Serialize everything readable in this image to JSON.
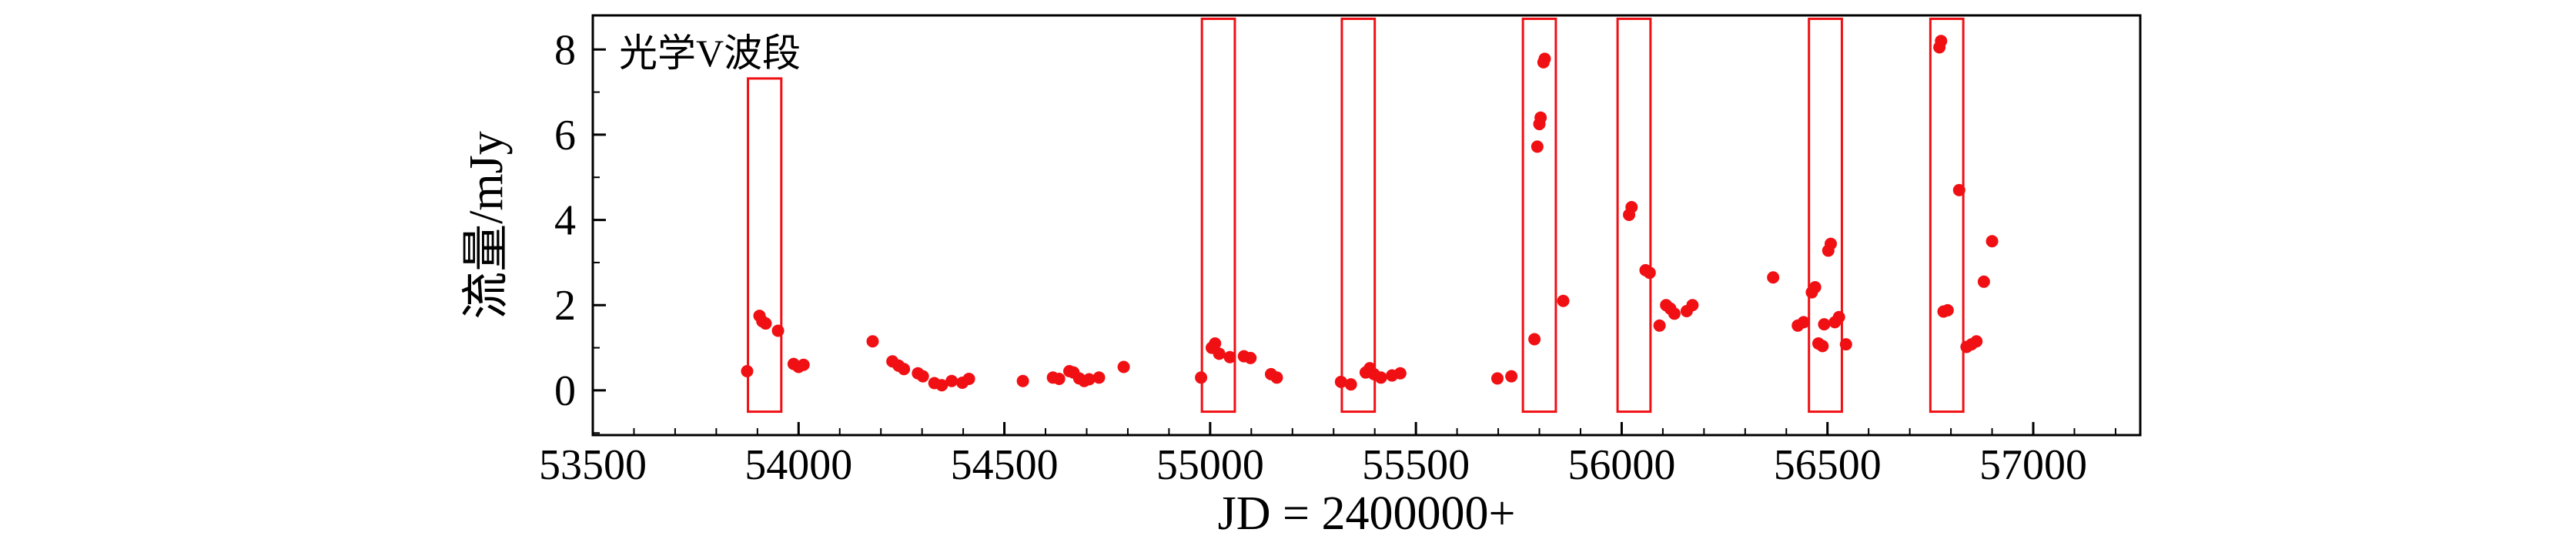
{
  "figure": {
    "background": "#ffffff",
    "accent_color": "#f01014",
    "text_color": "#000000"
  },
  "chart_data": {
    "type": "scatter",
    "title": "",
    "annotation": "光学V波段",
    "xlabel": "JD = 2400000+",
    "ylabel": "流量/mJy",
    "xlim": [
      53500,
      57260
    ],
    "ylim": [
      -1.05,
      8.8
    ],
    "xticks": [
      53500,
      54000,
      54500,
      55000,
      55500,
      56000,
      56500,
      57000
    ],
    "yticks": [
      0,
      2,
      4,
      6,
      8
    ],
    "x_minor_step": 100,
    "y_minor_step": 1,
    "grid": false,
    "legend_position": "none",
    "marker_color": "#f01014",
    "box_color": "#f01014",
    "axis_color": "#000000",
    "series": [
      {
        "name": "光学V波段",
        "points": [
          [
            53875,
            0.45
          ],
          [
            53905,
            1.75
          ],
          [
            53912,
            1.62
          ],
          [
            53920,
            1.57
          ],
          [
            53950,
            1.4
          ],
          [
            53988,
            0.62
          ],
          [
            54000,
            0.55
          ],
          [
            54012,
            0.6
          ],
          [
            54180,
            1.15
          ],
          [
            54228,
            0.68
          ],
          [
            54243,
            0.58
          ],
          [
            54256,
            0.5
          ],
          [
            54290,
            0.4
          ],
          [
            54302,
            0.33
          ],
          [
            54330,
            0.17
          ],
          [
            54348,
            0.12
          ],
          [
            54372,
            0.22
          ],
          [
            54398,
            0.18
          ],
          [
            54414,
            0.27
          ],
          [
            54545,
            0.22
          ],
          [
            54618,
            0.3
          ],
          [
            54633,
            0.27
          ],
          [
            54658,
            0.45
          ],
          [
            54668,
            0.42
          ],
          [
            54682,
            0.28
          ],
          [
            54694,
            0.22
          ],
          [
            54706,
            0.26
          ],
          [
            54730,
            0.3
          ],
          [
            54790,
            0.55
          ],
          [
            54978,
            0.3
          ],
          [
            55004,
            1.0
          ],
          [
            55012,
            1.1
          ],
          [
            55022,
            0.86
          ],
          [
            55048,
            0.78
          ],
          [
            55082,
            0.8
          ],
          [
            55098,
            0.76
          ],
          [
            55148,
            0.38
          ],
          [
            55162,
            0.3
          ],
          [
            55318,
            0.2
          ],
          [
            55342,
            0.14
          ],
          [
            55378,
            0.42
          ],
          [
            55388,
            0.52
          ],
          [
            55398,
            0.38
          ],
          [
            55415,
            0.3
          ],
          [
            55442,
            0.35
          ],
          [
            55462,
            0.4
          ],
          [
            55698,
            0.28
          ],
          [
            55732,
            0.33
          ],
          [
            55788,
            1.2
          ],
          [
            55795,
            5.72
          ],
          [
            55800,
            6.25
          ],
          [
            55803,
            6.4
          ],
          [
            55810,
            7.7
          ],
          [
            55813,
            7.78
          ],
          [
            55858,
            2.1
          ],
          [
            56018,
            4.12
          ],
          [
            56024,
            4.3
          ],
          [
            56058,
            2.82
          ],
          [
            56068,
            2.76
          ],
          [
            56092,
            1.52
          ],
          [
            56108,
            2.0
          ],
          [
            56118,
            1.92
          ],
          [
            56128,
            1.8
          ],
          [
            56158,
            1.86
          ],
          [
            56172,
            2.0
          ],
          [
            56368,
            2.65
          ],
          [
            56428,
            1.52
          ],
          [
            56442,
            1.6
          ],
          [
            56462,
            2.3
          ],
          [
            56470,
            2.42
          ],
          [
            56478,
            1.1
          ],
          [
            56488,
            1.04
          ],
          [
            56492,
            1.55
          ],
          [
            56502,
            3.28
          ],
          [
            56508,
            3.44
          ],
          [
            56518,
            1.6
          ],
          [
            56528,
            1.72
          ],
          [
            56545,
            1.08
          ],
          [
            56772,
            8.05
          ],
          [
            56776,
            8.2
          ],
          [
            56782,
            1.85
          ],
          [
            56792,
            1.88
          ],
          [
            56820,
            4.7
          ],
          [
            56838,
            1.02
          ],
          [
            56850,
            1.08
          ],
          [
            56862,
            1.15
          ],
          [
            56880,
            2.55
          ],
          [
            56900,
            3.5
          ]
        ]
      }
    ],
    "highlight_boxes": [
      {
        "x1": 53877,
        "x2": 53958,
        "y1": -0.5,
        "y2": 7.32
      },
      {
        "x1": 54980,
        "x2": 55060,
        "y1": -0.5,
        "y2": 8.72
      },
      {
        "x1": 55320,
        "x2": 55400,
        "y1": -0.5,
        "y2": 8.72
      },
      {
        "x1": 55760,
        "x2": 55840,
        "y1": -0.5,
        "y2": 8.72
      },
      {
        "x1": 55990,
        "x2": 56070,
        "y1": -0.5,
        "y2": 8.72
      },
      {
        "x1": 56455,
        "x2": 56535,
        "y1": -0.5,
        "y2": 8.72
      },
      {
        "x1": 56750,
        "x2": 56830,
        "y1": -0.5,
        "y2": 8.72
      }
    ]
  }
}
